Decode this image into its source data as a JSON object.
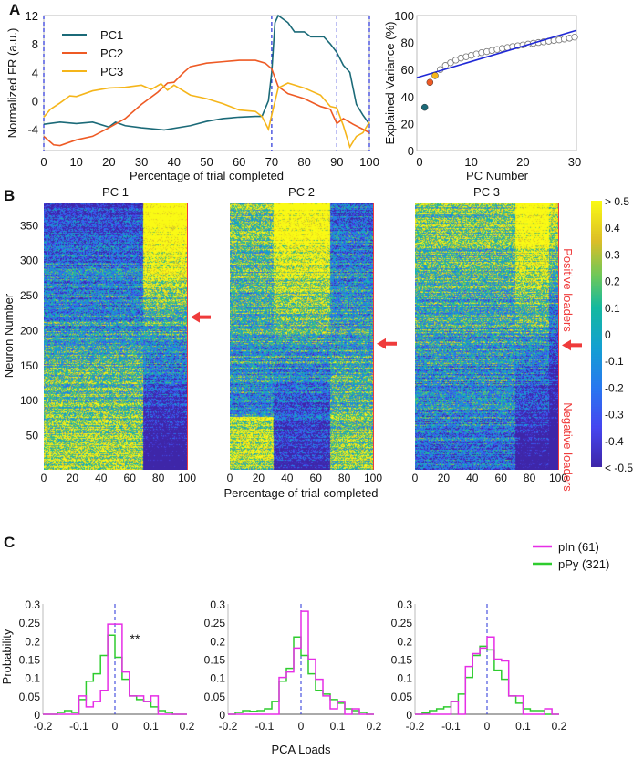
{
  "panel_labels": {
    "a": "A",
    "b": "B",
    "c": "C"
  },
  "chart_data": [
    {
      "id": "A-left",
      "type": "line",
      "xlabel": "Percentage of trial completed",
      "ylabel": "Normalized FR (a.u.)",
      "xlim": [
        0,
        100
      ],
      "ylim": [
        -7,
        12
      ],
      "xticks": [
        0,
        10,
        20,
        30,
        40,
        50,
        60,
        70,
        80,
        90,
        100
      ],
      "yticks": [
        -4,
        0,
        4,
        8,
        12
      ],
      "vlines_dashed": [
        0,
        70,
        90,
        100
      ],
      "legend_position": "top-left",
      "series": [
        {
          "name": "PC1",
          "color": "#1b6a78",
          "x": [
            0,
            5,
            10,
            15,
            20,
            22,
            25,
            30,
            37,
            45,
            50,
            55,
            60,
            65,
            67,
            69,
            70,
            71,
            72,
            75,
            77,
            80,
            82,
            86,
            88,
            90,
            92,
            94,
            96,
            98,
            100
          ],
          "y": [
            -3.3,
            -3,
            -3.2,
            -3,
            -3.7,
            -3,
            -3.5,
            -3.8,
            -4.1,
            -3.5,
            -2.9,
            -2.5,
            -2.3,
            -2.2,
            -2.2,
            0,
            4,
            11,
            12,
            11,
            9.7,
            9.7,
            9,
            9,
            8,
            6.8,
            5,
            4,
            -0.5,
            -2,
            -3.3
          ]
        },
        {
          "name": "PC2",
          "color": "#ee5a24",
          "x": [
            0,
            3,
            5,
            10,
            15,
            20,
            25,
            30,
            35,
            38,
            40,
            43,
            45,
            50,
            55,
            60,
            65,
            68,
            70,
            72,
            75,
            80,
            85,
            88,
            90,
            92,
            95,
            98,
            100
          ],
          "y": [
            -5,
            -6.2,
            -6.3,
            -5.5,
            -5,
            -3.8,
            -2.5,
            -0.5,
            1.2,
            2.5,
            2.6,
            4,
            4.8,
            5.3,
            5.5,
            5.7,
            5.7,
            5.3,
            4.5,
            2,
            1,
            0.3,
            -0.8,
            -1.2,
            -3.2,
            -2.5,
            -3.3,
            -4,
            -4.5
          ]
        },
        {
          "name": "PC3",
          "color": "#f5b51a",
          "x": [
            0,
            2,
            5,
            8,
            10,
            15,
            20,
            25,
            30,
            33,
            36,
            38,
            40,
            45,
            50,
            55,
            60,
            65,
            67,
            69,
            70,
            72,
            75,
            80,
            85,
            88,
            90,
            92,
            94,
            96,
            98,
            100
          ],
          "y": [
            -2.3,
            -1.2,
            -0.3,
            0.7,
            0.6,
            1.4,
            1.8,
            1.9,
            2.2,
            1.6,
            2.4,
            1.5,
            2.2,
            0.8,
            0.3,
            -0.4,
            -1.3,
            -1.5,
            -2.2,
            -4,
            -2,
            1.8,
            2.5,
            1.8,
            0.8,
            -0.8,
            -1,
            -3.5,
            -6.5,
            -5,
            -4.5,
            -3
          ]
        }
      ]
    },
    {
      "id": "A-right",
      "type": "scatter",
      "xlabel": "PC Number",
      "ylabel": "Explained Variance (%)",
      "xlim": [
        -1,
        30
      ],
      "ylim": [
        0,
        100
      ],
      "xticks": [
        0,
        10,
        20,
        30
      ],
      "yticks": [
        0,
        20,
        40,
        60,
        80,
        100
      ],
      "points": [
        {
          "x": 1,
          "y": 32,
          "fill": "#1b6a78"
        },
        {
          "x": 2,
          "y": 50.5,
          "fill": "#ee5a24"
        },
        {
          "x": 3,
          "y": 55.5,
          "fill": "#f5b51a"
        }
      ],
      "open_points": {
        "x": [
          4,
          5,
          6,
          7,
          8,
          9,
          10,
          11,
          12,
          13,
          14,
          15,
          16,
          17,
          18,
          19,
          20,
          21,
          22,
          23,
          24,
          25,
          26,
          27,
          28,
          29,
          30
        ],
        "y": [
          60,
          63,
          65,
          67,
          68.5,
          69.5,
          70.5,
          71.5,
          72.5,
          73.3,
          74.1,
          74.9,
          75.6,
          76.3,
          77,
          77.6,
          78.2,
          78.8,
          79.4,
          80,
          80.5,
          81,
          81.5,
          82,
          82.6,
          83.2,
          84
        ]
      },
      "fit_line": {
        "x": [
          -1,
          30
        ],
        "y": [
          54,
          89
        ],
        "color": "#1f28d6"
      }
    },
    {
      "id": "B",
      "type": "heatmap",
      "titles": [
        "PC 1",
        "PC 2",
        "PC 3"
      ],
      "xlabel": "Percentage of trial completed",
      "ylabel": "Neuron Number",
      "xlim": [
        0,
        100
      ],
      "ylim": [
        0,
        392
      ],
      "xticks": [
        0,
        20,
        40,
        60,
        80,
        100
      ],
      "yticks": [
        50,
        100,
        150,
        200,
        250,
        300,
        350
      ],
      "n_neurons": 382,
      "split_arrows_neuron": [
        218,
        180,
        178
      ],
      "colorbar": {
        "ticks": [
          "> 0.5",
          "0.4",
          "0.3",
          "0.2",
          "0.1",
          "0",
          "-0.1",
          "-0.2",
          "-0.3",
          "-0.4",
          "< -0.5"
        ],
        "range": [
          -0.5,
          0.5
        ]
      },
      "annotations": {
        "positive": "Positive loaders",
        "negative": "Negative loaders",
        "color": "#ef3b3b"
      }
    },
    {
      "id": "C",
      "type": "bar",
      "subtype": "step-histogram",
      "xlabel": "PCA Loads",
      "ylabel": "Probability",
      "xlim": [
        -0.2,
        0.2
      ],
      "ylim": [
        0,
        0.3
      ],
      "xticks": [
        "-0.2",
        "-0.1",
        "0",
        "0.1",
        "0.2"
      ],
      "yticks": [
        "0",
        "0.05",
        "0.1",
        "0.15",
        "0.2",
        "0.25",
        "0.3"
      ],
      "bin_edges_start": -0.2,
      "bin_width": 0.02,
      "legend": [
        {
          "name": "pIn (61)",
          "color": "#e62ee6"
        },
        {
          "name": "pPy (321)",
          "color": "#2ecc2e"
        }
      ],
      "significance": "**",
      "panels": [
        {
          "pIn": [
            0,
            0,
            0,
            0,
            0,
            0.05,
            0.02,
            0.035,
            0.065,
            0.245,
            0.245,
            0.115,
            0.05,
            0.05,
            0.035,
            0.05,
            0,
            0,
            0,
            0
          ],
          "pPy": [
            0,
            0,
            0.005,
            0.01,
            0.005,
            0.04,
            0.09,
            0.11,
            0.16,
            0.215,
            0.155,
            0.095,
            0.05,
            0.04,
            0.035,
            0.02,
            0.01,
            0.005,
            0,
            0
          ]
        },
        {
          "pIn": [
            0,
            0,
            0,
            0,
            0,
            0,
            0,
            0.1,
            0.115,
            0.18,
            0.28,
            0.15,
            0.095,
            0.05,
            0.015,
            0.035,
            0,
            0.015,
            0,
            0
          ],
          "pPy": [
            0,
            0.005,
            0.01,
            0.008,
            0.01,
            0.015,
            0.035,
            0.09,
            0.125,
            0.21,
            0.16,
            0.11,
            0.065,
            0.055,
            0.04,
            0.03,
            0.015,
            0.01,
            0.005,
            0
          ]
        },
        {
          "pIn": [
            0,
            0,
            0,
            0,
            0,
            0.035,
            0,
            0.13,
            0.165,
            0.18,
            0.21,
            0.15,
            0.145,
            0.05,
            0.05,
            0,
            0,
            0,
            0.015,
            0
          ],
          "pPy": [
            0,
            0.003,
            0.01,
            0.015,
            0.02,
            0.035,
            0.055,
            0.1,
            0.16,
            0.185,
            0.175,
            0.12,
            0.095,
            0.05,
            0.03,
            0.015,
            0.01,
            0.01,
            0,
            0
          ]
        }
      ]
    }
  ]
}
